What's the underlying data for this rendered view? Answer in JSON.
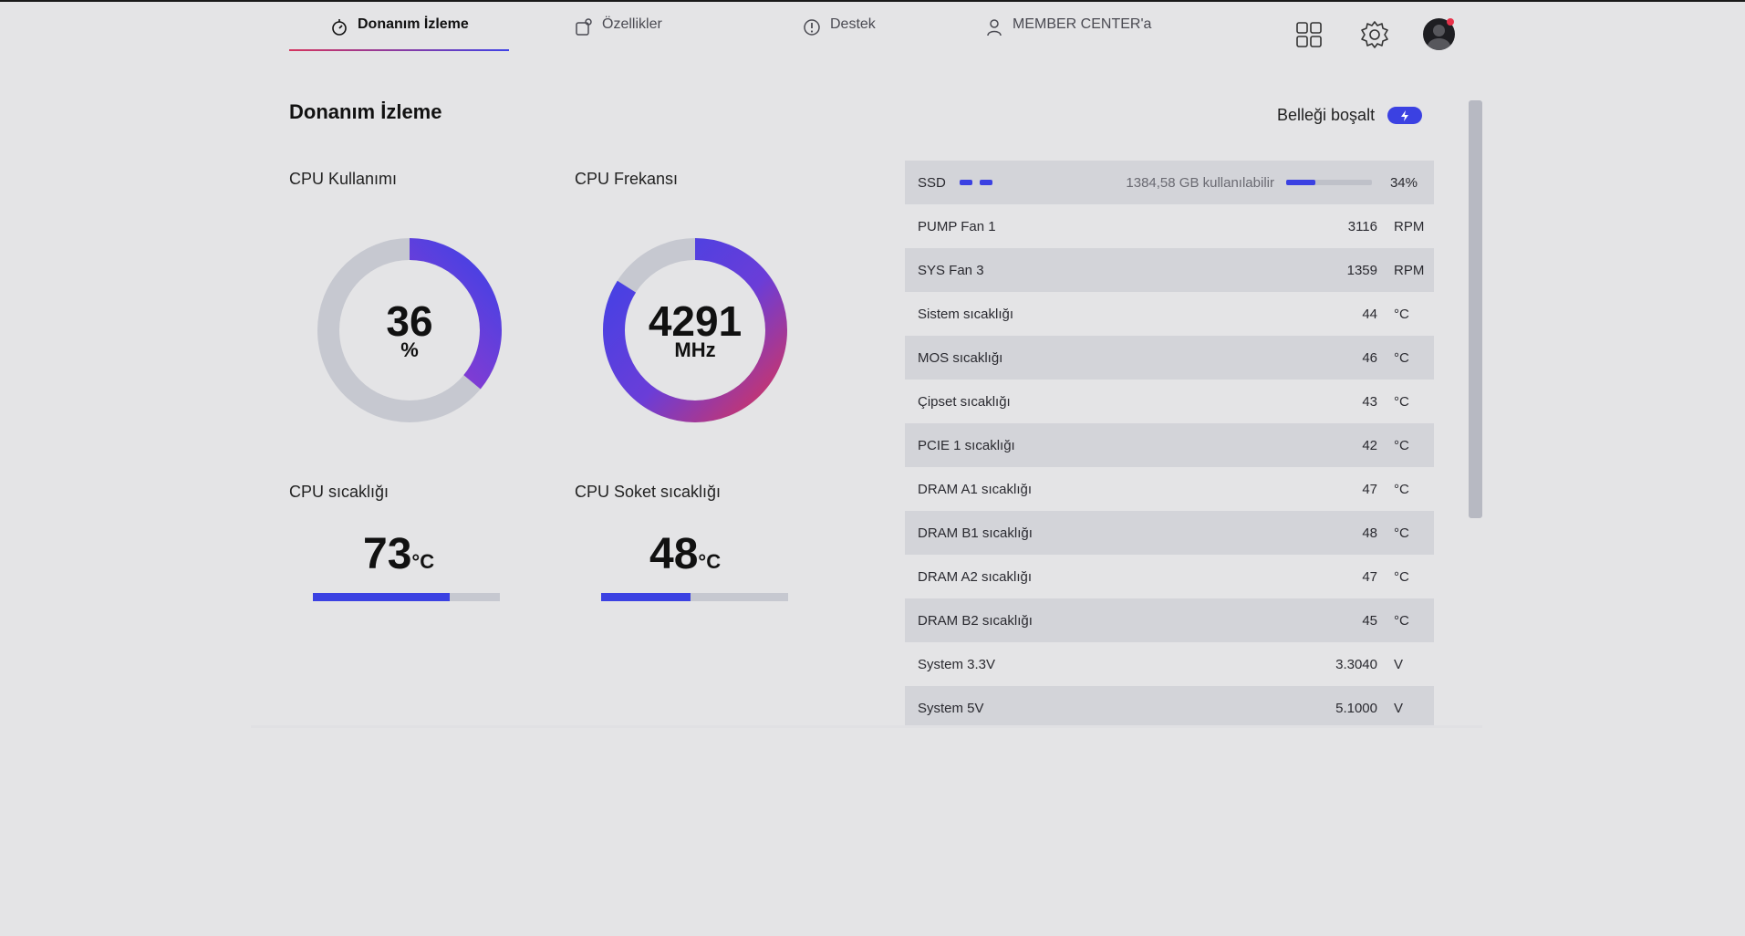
{
  "nav": {
    "tabs": [
      {
        "label": "Donanım İzleme",
        "icon": "monitor-icon",
        "active": true
      },
      {
        "label": "Özellikler",
        "icon": "features-icon",
        "active": false
      },
      {
        "label": "Destek",
        "icon": "support-icon",
        "active": false
      },
      {
        "label": "MEMBER CENTER'a",
        "icon": "user-icon",
        "active": false
      }
    ],
    "icons": [
      "apps-grid-icon",
      "gear-icon",
      "avatar-icon"
    ]
  },
  "page": {
    "title": "Donanım İzleme",
    "free_memory_label": "Belleği boşalt"
  },
  "cpu_usage": {
    "label": "CPU Kullanımı",
    "value": "36",
    "unit": "%",
    "fraction": 0.36
  },
  "cpu_freq": {
    "label": "CPU Frekansı",
    "value": "4291",
    "unit": "MHz",
    "fraction": 0.84
  },
  "cpu_temp": {
    "label": "CPU sıcaklığı",
    "value": "73",
    "unit": "°C",
    "fraction": 0.73
  },
  "socket_temp": {
    "label": "CPU Soket sıcaklığı",
    "value": "48",
    "unit": "°C",
    "fraction": 0.48
  },
  "ssd": {
    "label": "SSD",
    "free": "1384,58 GB kullanılabilir",
    "percent": "34%",
    "fraction": 0.34
  },
  "sensors": [
    {
      "label": "PUMP Fan 1",
      "value": "3116",
      "unit": "RPM"
    },
    {
      "label": "SYS Fan 3",
      "value": "1359",
      "unit": "RPM"
    },
    {
      "label": "Sistem sıcaklığı",
      "value": "44",
      "unit": "°C"
    },
    {
      "label": "MOS sıcaklığı",
      "value": "46",
      "unit": "°C"
    },
    {
      "label": "Çipset sıcaklığı",
      "value": "43",
      "unit": "°C"
    },
    {
      "label": "PCIE 1 sıcaklığı",
      "value": "42",
      "unit": "°C"
    },
    {
      "label": "DRAM A1 sıcaklığı",
      "value": "47",
      "unit": "°C"
    },
    {
      "label": "DRAM B1 sıcaklığı",
      "value": "48",
      "unit": "°C"
    },
    {
      "label": "DRAM A2 sıcaklığı",
      "value": "47",
      "unit": "°C"
    },
    {
      "label": "DRAM B2 sıcaklığı",
      "value": "45",
      "unit": "°C"
    },
    {
      "label": "System 3.3V",
      "value": "3.3040",
      "unit": "V"
    },
    {
      "label": "System 5V",
      "value": "5.1000",
      "unit": "V"
    }
  ],
  "colors": {
    "accent": "#3b41e2",
    "accent_pink": "#d5345e",
    "track": "#c6c8d0"
  }
}
